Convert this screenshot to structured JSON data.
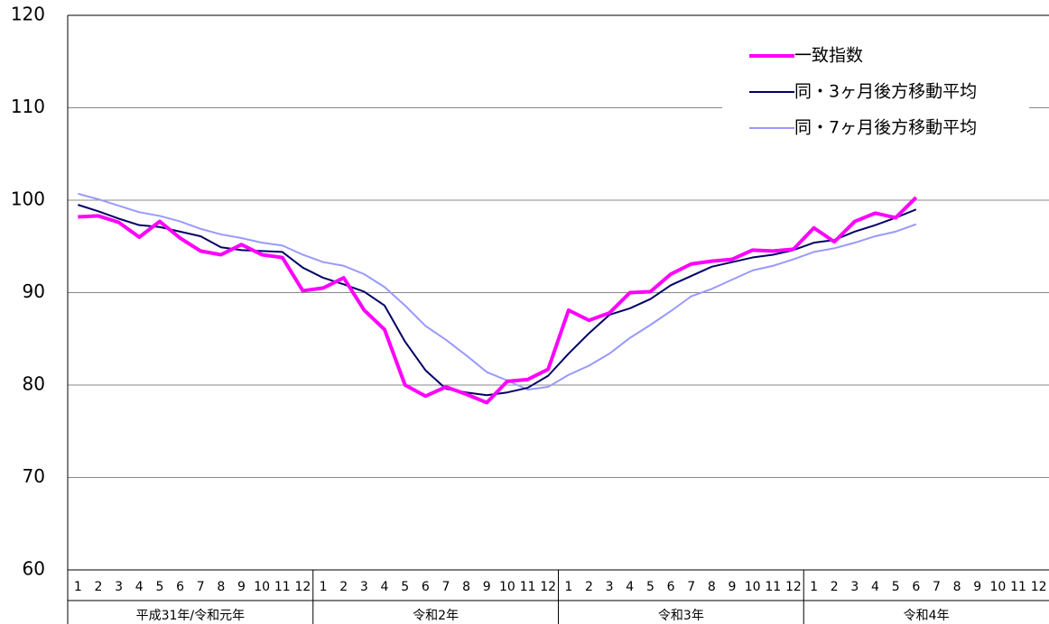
{
  "chart_data": {
    "type": "line",
    "categories": [
      "1",
      "2",
      "3",
      "4",
      "5",
      "6",
      "7",
      "8",
      "9",
      "10",
      "11",
      "12",
      "1",
      "2",
      "3",
      "4",
      "5",
      "6",
      "7",
      "8",
      "9",
      "10",
      "11",
      "12",
      "1",
      "2",
      "3",
      "4",
      "5",
      "6",
      "7",
      "8",
      "9",
      "10",
      "11",
      "12",
      "1",
      "2",
      "3",
      "4",
      "5",
      "6",
      "7",
      "8",
      "9",
      "10",
      "11",
      "12"
    ],
    "groups": [
      "平成31年/令和元年",
      "令和2年",
      "令和3年",
      "令和4年"
    ],
    "series": [
      {
        "name": "一致指数",
        "color": "#ff00ff",
        "width": 4,
        "values": [
          98.2,
          98.3,
          97.6,
          96.0,
          97.7,
          95.9,
          94.5,
          94.1,
          95.2,
          94.1,
          93.8,
          90.2,
          90.5,
          91.6,
          88.1,
          86.0,
          80.0,
          78.8,
          79.8,
          79.0,
          78.1,
          80.4,
          80.6,
          81.7,
          88.1,
          87.0,
          87.8,
          90.0,
          90.1,
          92.0,
          93.1,
          93.4,
          93.6,
          94.6,
          94.5,
          94.7,
          97.0,
          95.5,
          97.7,
          98.6,
          98.1,
          100.3,
          null,
          null,
          null,
          null,
          null,
          null
        ]
      },
      {
        "name": "同・3ヶ月後方移動平均",
        "color": "#000066",
        "width": 2,
        "values": [
          99.5,
          98.8,
          98.0,
          97.3,
          97.1,
          96.6,
          96.1,
          94.9,
          94.6,
          94.5,
          94.4,
          92.7,
          91.6,
          90.9,
          90.1,
          88.6,
          84.7,
          81.6,
          79.6,
          79.2,
          78.9,
          79.2,
          79.7,
          81.0,
          83.4,
          85.6,
          87.6,
          88.3,
          89.3,
          90.8,
          91.8,
          92.8,
          93.3,
          93.8,
          94.1,
          94.6,
          95.4,
          95.7,
          96.6,
          97.3,
          98.1,
          99.0,
          null,
          null,
          null,
          null,
          null,
          null
        ]
      },
      {
        "name": "同・7ヶ月後方移動平均",
        "color": "#9999ff",
        "width": 2,
        "values": [
          100.7,
          100.1,
          99.4,
          98.7,
          98.3,
          97.7,
          96.9,
          96.3,
          95.9,
          95.4,
          95.1,
          94.1,
          93.3,
          92.9,
          92.0,
          90.6,
          88.6,
          86.4,
          84.9,
          83.2,
          81.4,
          80.5,
          79.5,
          79.8,
          81.1,
          82.1,
          83.4,
          85.1,
          86.5,
          88.0,
          89.6,
          90.4,
          91.4,
          92.4,
          92.9,
          93.6,
          94.4,
          94.8,
          95.4,
          96.1,
          96.6,
          97.4,
          null,
          null,
          null,
          null,
          null,
          null
        ]
      }
    ],
    "ylim": [
      60,
      120
    ],
    "yticks": [
      60,
      70,
      80,
      90,
      100,
      110,
      120
    ],
    "grid": true,
    "legend": "upper-right"
  }
}
